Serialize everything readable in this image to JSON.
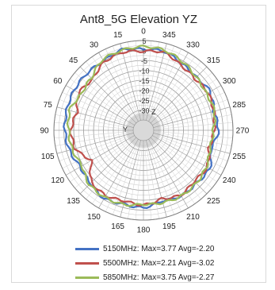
{
  "chart_data": {
    "type": "polar-line",
    "title": "Ant8_5G Elevation YZ",
    "angle_labels": [
      "0",
      "15",
      "30",
      "45",
      "60",
      "75",
      "90",
      "105",
      "120",
      "135",
      "150",
      "165",
      "180",
      "195",
      "210",
      "225",
      "240",
      "255",
      "270",
      "285",
      "300",
      "315",
      "330",
      "345"
    ],
    "radial_labels": [
      "5",
      "0",
      "-5",
      "-10",
      "-15",
      "-20",
      "-25",
      "-30"
    ],
    "rlim": [
      -35,
      5
    ],
    "axis_labels": {
      "z": "Z",
      "y": "Y"
    },
    "grid": true,
    "legend_position": "bottom",
    "theta": [
      0,
      15,
      30,
      45,
      60,
      75,
      90,
      105,
      120,
      135,
      150,
      165,
      180,
      195,
      210,
      225,
      240,
      255,
      270,
      285,
      300,
      315,
      330,
      345,
      360
    ],
    "series": [
      {
        "name": "5150MHz",
        "legend_label": "5150MHz: Max=3.77 Avg=-2.20",
        "color": "#4472C4",
        "values": [
          0.5,
          1.8,
          0,
          0.2,
          0.2,
          -0.2,
          -0.5,
          -1.5,
          -3.5,
          -2.5,
          -0.5,
          -1.8,
          -1.2,
          -3.5,
          -2,
          -2.5,
          -1.5,
          -5,
          -2.2,
          -3.5,
          -1.2,
          -2.5,
          -1.5,
          1,
          0.5
        ]
      },
      {
        "name": "5500MHz",
        "legend_label": "5500MHz: Max=2.21 Avg=-3.02",
        "color": "#C0504D",
        "values": [
          -0.5,
          0.5,
          -0.5,
          -4,
          -2.5,
          -5.5,
          -3.5,
          -4.5,
          -10,
          -3,
          -2.2,
          -3.5,
          -2.5,
          -4.5,
          -2.5,
          -4,
          -3,
          -6,
          -4.5,
          -3.5,
          -2.5,
          -3.5,
          -2.5,
          0.5,
          -0.5
        ]
      },
      {
        "name": "5850MHz",
        "legend_label": "5850MHz: Max=3.75 Avg=-2.27",
        "color": "#9BBB59",
        "values": [
          2,
          1.5,
          1,
          -3,
          -4,
          -1.5,
          -2.5,
          -3,
          -4.5,
          -1.5,
          -1.2,
          -1.5,
          -3,
          -2.5,
          -2,
          -2.5,
          -3.5,
          -5.5,
          -5,
          -3,
          -3.5,
          -2.5,
          -0.5,
          1.5,
          2
        ]
      }
    ]
  }
}
